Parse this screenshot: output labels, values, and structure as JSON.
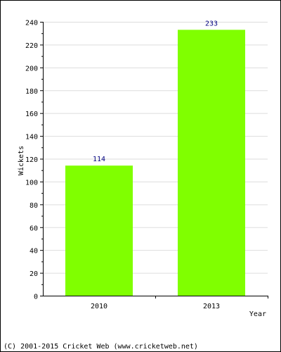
{
  "chart_data": {
    "type": "bar",
    "categories": [
      "2010",
      "2013"
    ],
    "values": [
      114,
      233
    ],
    "title": "",
    "xlabel": "Year",
    "ylabel": "Wickets",
    "ylim": [
      0,
      240
    ],
    "yticks": [
      0,
      20,
      40,
      60,
      80,
      100,
      120,
      140,
      160,
      180,
      200,
      220,
      240
    ],
    "grid": true,
    "data_labels": [
      "114",
      "233"
    ]
  },
  "colors": {
    "bar_fill": "#80ff00",
    "grid": "#dddddd",
    "axis": "#000000",
    "data_label": "#000080"
  },
  "footer": {
    "copyright": "(C) 2001-2015 Cricket Web (www.cricketweb.net)"
  }
}
